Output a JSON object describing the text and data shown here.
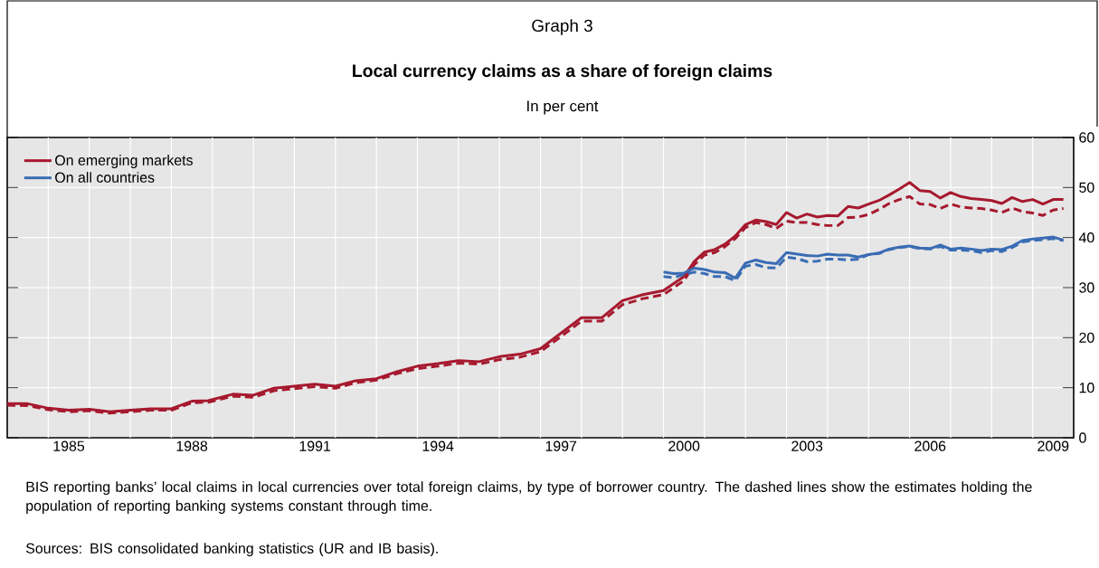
{
  "chart_data": {
    "type": "line",
    "title": "Local currency claims as a share of foreign claims",
    "subtitle": "In per cent",
    "annotations": [
      "Graph 3",
      "BIS reporting banks’ local claims in local currencies over total foreign claims, by type of borrower country. The dashed lines show the estimates holding the population of reporting banking systems constant through time.",
      "Sources: BIS consolidated banking statistics (UR and IB basis)."
    ],
    "xlim": [
      1984,
      2010
    ],
    "ylim": [
      0,
      60
    ],
    "yticks": [
      0,
      10,
      20,
      30,
      40,
      50,
      60
    ],
    "xticks": [
      {
        "value": 1985,
        "label": null
      },
      {
        "value": 1985.5,
        "label": "1985"
      },
      {
        "value": 1986,
        "label": null
      },
      {
        "value": 1987,
        "label": null
      },
      {
        "value": 1988,
        "label": null
      },
      {
        "value": 1988.5,
        "label": "1988"
      },
      {
        "value": 1989,
        "label": null
      },
      {
        "value": 1990,
        "label": null
      },
      {
        "value": 1991,
        "label": null
      },
      {
        "value": 1991.5,
        "label": "1991"
      },
      {
        "value": 1992,
        "label": null
      },
      {
        "value": 1993,
        "label": null
      },
      {
        "value": 1994,
        "label": null
      },
      {
        "value": 1994.5,
        "label": "1994"
      },
      {
        "value": 1995,
        "label": null
      },
      {
        "value": 1996,
        "label": null
      },
      {
        "value": 1997,
        "label": null
      },
      {
        "value": 1997.5,
        "label": "1997"
      },
      {
        "value": 1998,
        "label": null
      },
      {
        "value": 1999,
        "label": null
      },
      {
        "value": 2000,
        "label": null
      },
      {
        "value": 2000.5,
        "label": "2000"
      },
      {
        "value": 2001,
        "label": null
      },
      {
        "value": 2002,
        "label": null
      },
      {
        "value": 2003,
        "label": null
      },
      {
        "value": 2003.5,
        "label": "2003"
      },
      {
        "value": 2004,
        "label": null
      },
      {
        "value": 2005,
        "label": null
      },
      {
        "value": 2006,
        "label": null
      },
      {
        "value": 2006.5,
        "label": "2006"
      },
      {
        "value": 2007,
        "label": null
      },
      {
        "value": 2008,
        "label": null
      },
      {
        "value": 2009,
        "label": null
      },
      {
        "value": 2009.5,
        "label": "2009"
      }
    ],
    "grid": true,
    "legend": "top left",
    "series": [
      {
        "name": "On emerging markets",
        "color": "#a6192e",
        "line_style": "solid",
        "x": [
          1984.0,
          1984.5,
          1985.0,
          1985.5,
          1986.0,
          1986.5,
          1987.0,
          1987.5,
          1988.0,
          1988.5,
          1988.9,
          1989.5,
          1990.0,
          1990.5,
          1991.0,
          1991.5,
          1992.0,
          1992.5,
          1993.0,
          1993.5,
          1994.0,
          1994.5,
          1995.0,
          1995.5,
          1996.0,
          1996.5,
          1997.0,
          1997.5,
          1998.0,
          1998.5,
          1999.0,
          1999.5,
          2000.0,
          2000.5,
          2000.75,
          2001.0,
          2001.25,
          2001.5,
          2001.75,
          2002.0,
          2002.25,
          2002.5,
          2002.75,
          2003.0,
          2003.25,
          2003.5,
          2003.75,
          2004.0,
          2004.25,
          2004.5,
          2004.75,
          2005.0,
          2005.25,
          2005.5,
          2005.75,
          2006.0,
          2006.25,
          2006.5,
          2006.75,
          2007.0,
          2007.25,
          2007.5,
          2007.75,
          2008.0,
          2008.25,
          2008.5,
          2008.75,
          2009.0,
          2009.25,
          2009.5,
          2009.75
        ],
        "values": [
          6.8,
          6.8,
          5.9,
          5.5,
          5.7,
          5.2,
          5.5,
          5.8,
          5.8,
          7.3,
          7.4,
          8.7,
          8.5,
          9.9,
          10.3,
          10.7,
          10.3,
          11.4,
          11.8,
          13.2,
          14.3,
          14.8,
          15.4,
          15.2,
          16.2,
          16.7,
          17.8,
          20.9,
          24.0,
          24.0,
          27.4,
          28.6,
          29.4,
          32.2,
          35.2,
          37.1,
          37.6,
          38.7,
          40.3,
          42.6,
          43.5,
          43.2,
          42.6,
          45.0,
          43.9,
          44.7,
          44.1,
          44.4,
          44.3,
          46.2,
          45.9,
          46.7,
          47.4,
          48.5,
          49.7,
          51.0,
          49.4,
          49.2,
          47.9,
          49.0,
          48.2,
          47.8,
          47.6,
          47.4,
          46.8,
          48.0,
          47.2,
          47.6,
          46.7,
          47.6,
          47.6
        ]
      },
      {
        "color": "#a6192e",
        "line_style": "dashed",
        "x": [
          1984.0,
          1984.5,
          1985.0,
          1985.5,
          1986.0,
          1986.5,
          1987.0,
          1987.5,
          1988.0,
          1988.5,
          1988.9,
          1989.5,
          1990.0,
          1990.5,
          1991.0,
          1991.5,
          1992.0,
          1992.5,
          1993.0,
          1993.5,
          1994.0,
          1994.5,
          1995.0,
          1995.5,
          1996.0,
          1996.5,
          1997.0,
          1997.5,
          1998.0,
          1998.5,
          1999.0,
          1999.5,
          2000.0,
          2000.5,
          2000.75,
          2001.0,
          2001.25,
          2001.5,
          2001.75,
          2002.0,
          2002.25,
          2002.5,
          2002.75,
          2003.0,
          2003.25,
          2003.5,
          2003.75,
          2004.0,
          2004.25,
          2004.5,
          2004.75,
          2005.0,
          2005.25,
          2005.5,
          2005.75,
          2006.0,
          2006.25,
          2006.5,
          2006.75,
          2007.0,
          2007.25,
          2007.5,
          2007.75,
          2008.0,
          2008.25,
          2008.5,
          2008.75,
          2009.0,
          2009.25,
          2009.5,
          2009.75
        ],
        "values": [
          6.5,
          6.4,
          5.6,
          5.2,
          5.4,
          4.9,
          5.2,
          5.5,
          5.5,
          7.0,
          7.1,
          8.3,
          8.1,
          9.4,
          9.8,
          10.2,
          9.9,
          11.0,
          11.5,
          12.8,
          13.8,
          14.3,
          14.9,
          14.7,
          15.6,
          16.1,
          17.2,
          20.2,
          23.3,
          23.3,
          26.6,
          27.8,
          28.6,
          31.4,
          34.6,
          36.5,
          37.0,
          38.2,
          39.8,
          42.0,
          43.0,
          42.6,
          41.8,
          43.3,
          43.0,
          43.0,
          42.6,
          42.4,
          42.4,
          44.0,
          44.1,
          44.6,
          45.6,
          46.8,
          47.6,
          48.2,
          46.7,
          46.6,
          45.8,
          46.7,
          46.1,
          45.9,
          45.8,
          45.5,
          45.0,
          45.9,
          45.2,
          44.9,
          44.4,
          45.5,
          45.8
        ]
      },
      {
        "name": "On all countries",
        "color": "#3a6cb4",
        "line_style": "solid",
        "x": [
          2000.0,
          2000.25,
          2000.5,
          2000.75,
          2001.0,
          2001.25,
          2001.5,
          2001.75,
          2002.0,
          2002.25,
          2002.5,
          2002.75,
          2003.0,
          2003.25,
          2003.5,
          2003.75,
          2004.0,
          2004.25,
          2004.5,
          2004.75,
          2005.0,
          2005.25,
          2005.5,
          2005.75,
          2006.0,
          2006.25,
          2006.5,
          2006.75,
          2007.0,
          2007.25,
          2007.5,
          2007.75,
          2008.0,
          2008.25,
          2008.5,
          2008.75,
          2009.0,
          2009.25,
          2009.5,
          2009.75
        ],
        "values": [
          33.1,
          32.8,
          32.9,
          33.9,
          33.6,
          33.1,
          33.0,
          31.9,
          34.9,
          35.5,
          35.0,
          34.8,
          37.0,
          36.7,
          36.4,
          36.3,
          36.7,
          36.5,
          36.5,
          36.1,
          36.6,
          36.9,
          37.7,
          38.1,
          38.3,
          37.9,
          37.8,
          38.5,
          37.7,
          37.9,
          37.7,
          37.4,
          37.7,
          37.6,
          38.3,
          39.4,
          39.7,
          39.9,
          40.1,
          39.5
        ]
      },
      {
        "color": "#3a6cb4",
        "line_style": "dashed",
        "x": [
          2000.0,
          2000.25,
          2000.5,
          2000.75,
          2001.0,
          2001.25,
          2001.5,
          2001.75,
          2002.0,
          2002.25,
          2002.5,
          2002.75,
          2003.0,
          2003.25,
          2003.5,
          2003.75,
          2004.0,
          2004.25,
          2004.5,
          2004.75,
          2005.0,
          2005.25,
          2005.5,
          2005.75,
          2006.0,
          2006.25,
          2006.5,
          2006.75,
          2007.0,
          2007.25,
          2007.5,
          2007.75,
          2008.0,
          2008.25,
          2008.5,
          2008.75,
          2009.0,
          2009.25,
          2009.5,
          2009.75
        ],
        "values": [
          32.2,
          32.0,
          32.6,
          33.1,
          32.8,
          32.2,
          32.2,
          31.4,
          34.3,
          34.6,
          34.0,
          33.9,
          36.1,
          35.8,
          35.2,
          35.3,
          35.7,
          35.7,
          35.5,
          35.7,
          36.6,
          36.8,
          37.6,
          38.0,
          38.2,
          37.8,
          37.7,
          38.2,
          37.5,
          37.5,
          37.4,
          37.0,
          37.4,
          37.2,
          38.0,
          39.1,
          39.4,
          39.6,
          39.8,
          39.4
        ]
      }
    ]
  }
}
